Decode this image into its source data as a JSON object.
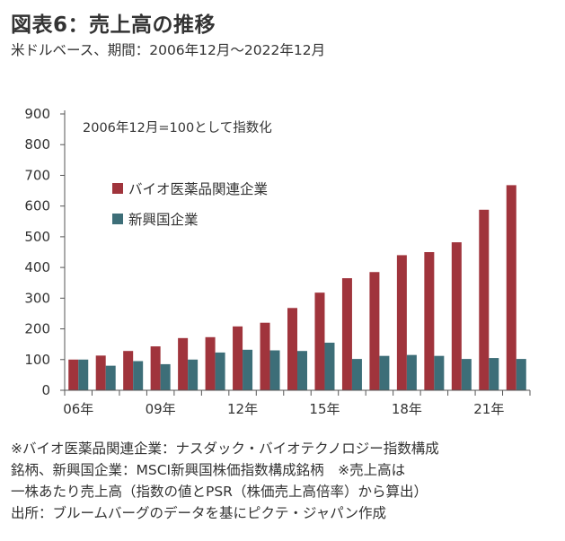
{
  "header": {
    "title": "図表6：売上高の推移",
    "subtitle": "米ドルベース、期間：2006年12月～2022年12月"
  },
  "colors": {
    "series1": "#a0343c",
    "series2": "#3d6e78",
    "axis": "#555555"
  },
  "chart_data": {
    "type": "bar",
    "title": "売上高の推移",
    "annotation": "2006年12月=100として指数化",
    "ylim": [
      0,
      900
    ],
    "yticks": [
      0,
      100,
      200,
      300,
      400,
      500,
      600,
      700,
      800,
      900
    ],
    "categories": [
      "2006",
      "2007",
      "2008",
      "2009",
      "2010",
      "2011",
      "2012",
      "2013",
      "2014",
      "2015",
      "2016",
      "2017",
      "2018",
      "2019",
      "2020",
      "2021",
      "2022"
    ],
    "xtick_labels": [
      "06年",
      "",
      "",
      "09年",
      "",
      "",
      "12年",
      "",
      "",
      "15年",
      "",
      "",
      "18年",
      "",
      "",
      "21年",
      ""
    ],
    "legend_position": "upper-left",
    "series": [
      {
        "name": "バイオ医薬品関連企業",
        "values": [
          100,
          113,
          128,
          143,
          170,
          173,
          208,
          220,
          268,
          318,
          365,
          385,
          440,
          450,
          482,
          588,
          668
        ]
      },
      {
        "name": "新興国企業",
        "values": [
          100,
          80,
          95,
          85,
          100,
          123,
          132,
          130,
          128,
          155,
          102,
          112,
          115,
          112,
          102,
          105,
          102
        ]
      }
    ]
  },
  "notes": {
    "line1": "※バイオ医薬品関連企業：ナスダック・バイオテクノロジー指数構成",
    "line2": "銘柄、新興国企業：MSCI新興国株価指数構成銘柄　※売上高は",
    "line3": "一株あたり売上高（指数の値とPSR（株価売上高倍率）から算出）",
    "line4": "出所：ブルームバーグのデータを基にピクテ・ジャパン作成"
  }
}
